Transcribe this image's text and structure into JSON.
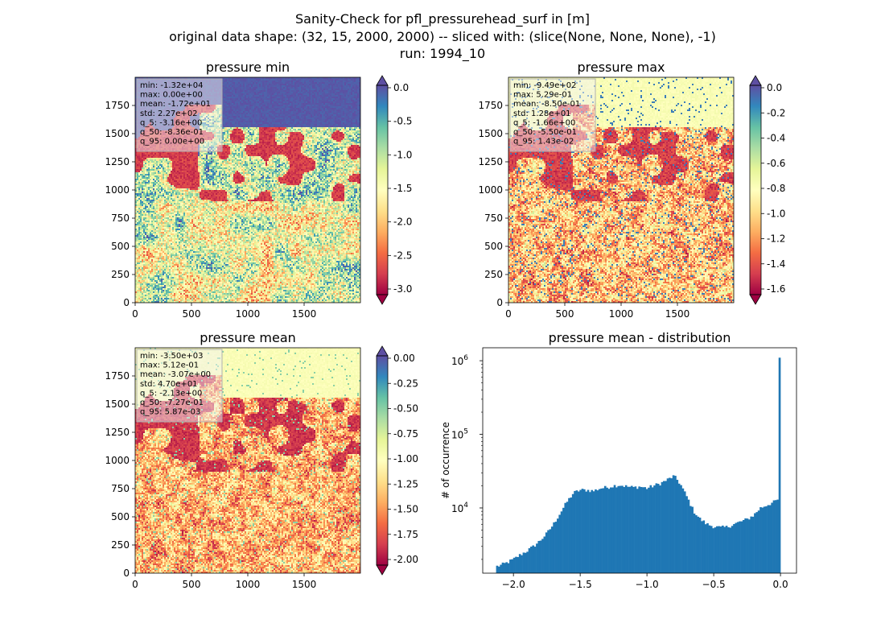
{
  "figure": {
    "suptitle_lines": [
      "Sanity-Check for pfl_pressurehead_surf in [m]",
      "original data shape: (32, 15, 2000, 2000) -- sliced with: (slice(None, None, None), -1)",
      "run: 1994_10"
    ]
  },
  "colors": {
    "histogram_bar": "#1f77b4",
    "stats_box_fill": "#f2f2f2",
    "colormap": "Spectral",
    "colormap_stops": [
      "#9e0142",
      "#d53e4f",
      "#f46d43",
      "#fdae61",
      "#fee08b",
      "#ffffbf",
      "#e6f598",
      "#abdda4",
      "#66c2a5",
      "#3288bd",
      "#5e4fa2"
    ],
    "map_colors": {
      "sea_low": "#5e4fa2",
      "sea_high": "#ffffbf",
      "land_mid": "#f46d43",
      "dry": "#9e0142"
    }
  },
  "chart_data": [
    {
      "type": "heatmap",
      "title": "pressure min",
      "xlim": [
        0,
        2000
      ],
      "ylim": [
        0,
        2000
      ],
      "x_ticks": [
        "0",
        "500",
        "1000",
        "1500"
      ],
      "y_ticks": [
        "0",
        "250",
        "500",
        "750",
        "1000",
        "1250",
        "1500",
        "1750"
      ],
      "colorbar": {
        "range": [
          -3.16,
          0.0
        ],
        "ticks": [
          "0.0",
          "-0.5",
          "-1.0",
          "-1.5",
          "-2.0",
          "-2.5",
          "-3.0"
        ],
        "extend": "both"
      },
      "stats": [
        "min: -1.32e+04",
        "max: 0.00e+00",
        "mean: -1.72e+01",
        "std: 2.27e+02",
        "q_5: -3.16e+00",
        "q_50: -8.36e-01",
        "q_95: 0.00e+00"
      ]
    },
    {
      "type": "heatmap",
      "title": "pressure max",
      "xlim": [
        0,
        2000
      ],
      "ylim": [
        0,
        2000
      ],
      "x_ticks": [
        "0",
        "500",
        "1000",
        "1500"
      ],
      "y_ticks": [
        "0",
        "250",
        "500",
        "750",
        "1000",
        "1250",
        "1500",
        "1750"
      ],
      "colorbar": {
        "range": [
          -1.66,
          0.0
        ],
        "ticks": [
          "0.0",
          "-0.2",
          "-0.4",
          "-0.6",
          "-0.8",
          "-1.0",
          "-1.2",
          "-1.4",
          "-1.6"
        ],
        "extend": "both"
      },
      "stats": [
        "min: -9.49e+02",
        "max: 5.29e-01",
        "mean: -8.50e-01",
        "std: 1.28e+01",
        "q_5: -1.66e+00",
        "q_50: -5.50e-01",
        "q_95: 1.43e-02"
      ]
    },
    {
      "type": "heatmap",
      "title": "pressure mean",
      "xlim": [
        0,
        2000
      ],
      "ylim": [
        0,
        2000
      ],
      "x_ticks": [
        "0",
        "500",
        "1000",
        "1500"
      ],
      "y_ticks": [
        "0",
        "250",
        "500",
        "750",
        "1000",
        "1250",
        "1500",
        "1750"
      ],
      "colorbar": {
        "range": [
          -2.13,
          0.0
        ],
        "ticks": [
          "0.00",
          "-0.25",
          "-0.50",
          "-0.75",
          "-1.00",
          "-1.25",
          "-1.50",
          "-1.75",
          "-2.00"
        ],
        "extend": "both"
      },
      "stats": [
        "min: -3.50e+03",
        "max: 5.12e-01",
        "mean: -3.07e+00",
        "std: 4.70e+01",
        "q_5: -2.13e+00",
        "q_50: -7.27e-01",
        "q_95: 5.87e-03"
      ]
    },
    {
      "type": "bar",
      "title": "pressure mean - distribution",
      "ylabel": "# of occurrence",
      "y_scale": "log",
      "xlim": [
        -2.23,
        0.12
      ],
      "ylim": [
        1300,
        1500000
      ],
      "x_ticks": [
        {
          "value": -2.0,
          "label": "−2.0"
        },
        {
          "value": -1.5,
          "label": "−1.5"
        },
        {
          "value": -1.0,
          "label": "−1.0"
        },
        {
          "value": -0.5,
          "label": "−0.5"
        },
        {
          "value": 0.0,
          "label": "0.0"
        }
      ],
      "y_ticks": [
        {
          "value": 10000,
          "base": "10",
          "exp": "4"
        },
        {
          "value": 100000,
          "base": "10",
          "exp": "5"
        },
        {
          "value": 1000000,
          "base": "10",
          "exp": "6"
        }
      ],
      "bins": {
        "x_start": -2.13,
        "x_end": 0.0,
        "count": 150,
        "anchors": [
          [
            -2.13,
            1600
          ],
          [
            -2.1,
            1650
          ],
          [
            -2.05,
            1800
          ],
          [
            -2.0,
            2000
          ],
          [
            -1.95,
            2300
          ],
          [
            -1.9,
            2600
          ],
          [
            -1.85,
            3000
          ],
          [
            -1.8,
            3600
          ],
          [
            -1.75,
            4500
          ],
          [
            -1.7,
            6000
          ],
          [
            -1.65,
            8500
          ],
          [
            -1.6,
            12000
          ],
          [
            -1.55,
            16000
          ],
          [
            -1.5,
            17500
          ],
          [
            -1.45,
            17500
          ],
          [
            -1.4,
            17000
          ],
          [
            -1.35,
            18500
          ],
          [
            -1.3,
            19000
          ],
          [
            -1.25,
            20000
          ],
          [
            -1.2,
            20500
          ],
          [
            -1.15,
            19500
          ],
          [
            -1.1,
            19000
          ],
          [
            -1.05,
            19500
          ],
          [
            -1.0,
            18500
          ],
          [
            -0.95,
            20000
          ],
          [
            -0.9,
            21500
          ],
          [
            -0.85,
            24000
          ],
          [
            -0.8,
            27000
          ],
          [
            -0.78,
            25000
          ],
          [
            -0.75,
            21000
          ],
          [
            -0.7,
            14000
          ],
          [
            -0.65,
            9000
          ],
          [
            -0.6,
            7000
          ],
          [
            -0.55,
            6000
          ],
          [
            -0.5,
            5600
          ],
          [
            -0.45,
            5400
          ],
          [
            -0.4,
            5500
          ],
          [
            -0.35,
            6000
          ],
          [
            -0.3,
            6500
          ],
          [
            -0.25,
            7000
          ],
          [
            -0.2,
            8000
          ],
          [
            -0.15,
            10000
          ],
          [
            -0.1,
            11000
          ],
          [
            -0.05,
            12000
          ],
          [
            -0.02,
            13000
          ],
          [
            -0.01,
            24000
          ],
          [
            0.0,
            1100000
          ]
        ]
      }
    }
  ]
}
